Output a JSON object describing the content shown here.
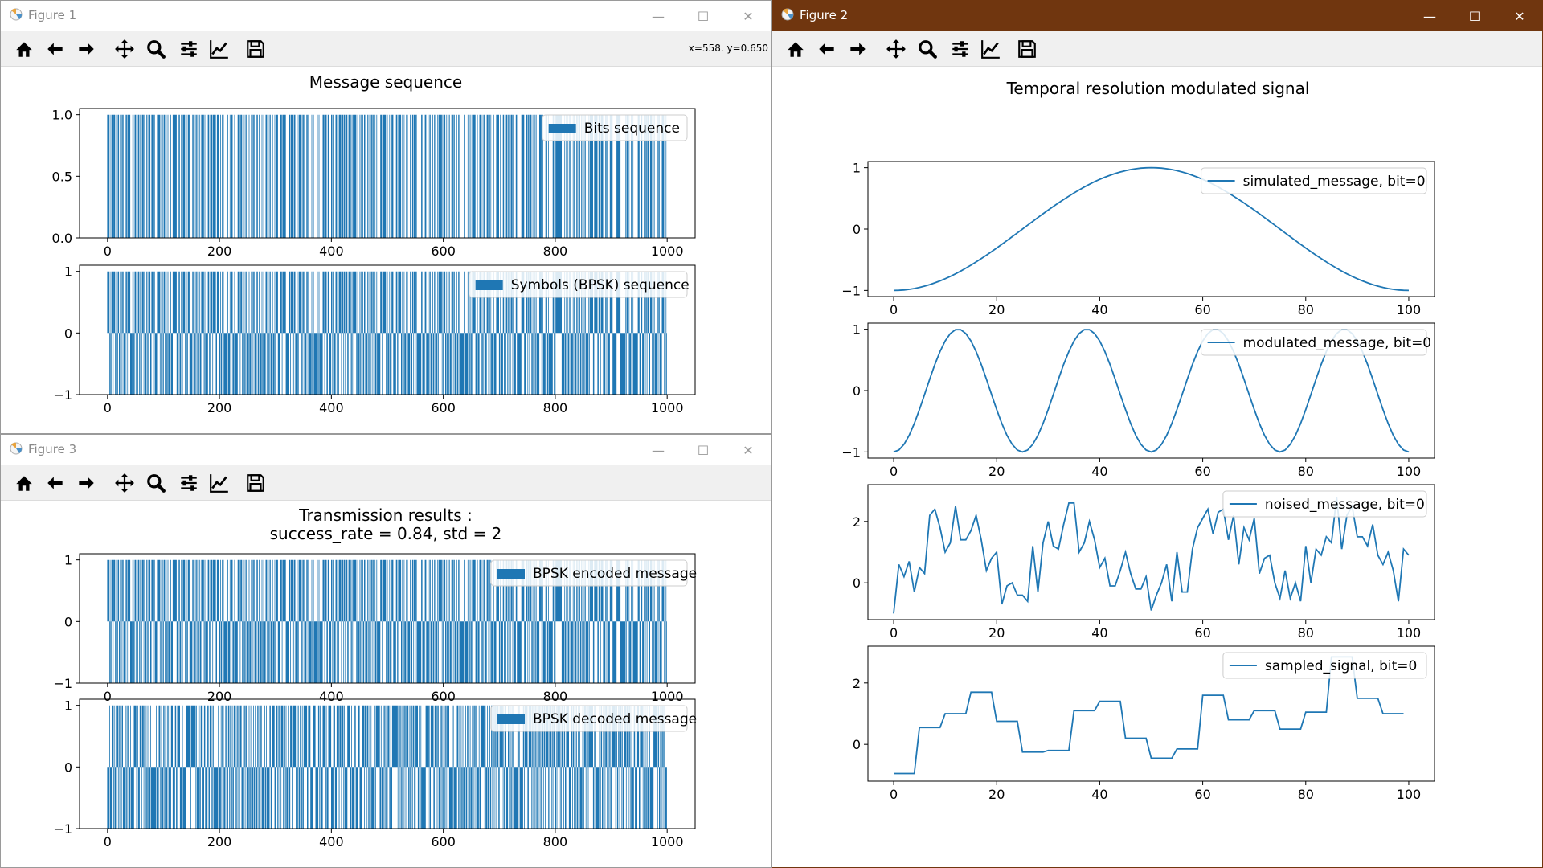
{
  "colors": {
    "series": "#1f77b4",
    "active_title": "#70360f",
    "inactive_title": "#ffffff",
    "toolbar": "#f0f0f0"
  },
  "toolbar_icons": [
    "home-icon",
    "back-arrow-icon",
    "forward-arrow-icon",
    "pan-icon",
    "zoom-icon",
    "configure-subplots-icon",
    "edit-axis-icon",
    "save-icon"
  ],
  "figure1": {
    "title": "Figure 1",
    "coords": "x=558. y=0.650",
    "suptitle": "Message sequence"
  },
  "figure2": {
    "title": "Figure 2",
    "suptitle": "Temporal resolution modulated signal"
  },
  "figure3": {
    "title": "Figure 3",
    "suptitle_line1": "Transmission results :",
    "suptitle_line2": "success_rate = 0.84, std = 2"
  },
  "chart_data": [
    {
      "type": "bar",
      "figure": "Figure 1",
      "legend": "Bits sequence",
      "xlim": [
        0,
        1000
      ],
      "ylim": [
        0,
        1
      ],
      "xticks": [
        "0",
        "200",
        "400",
        "600",
        "800",
        "1000"
      ],
      "yticks": [
        "0.0",
        "0.5",
        "1.0"
      ]
    },
    {
      "type": "bar",
      "figure": "Figure 1",
      "legend": "Symbols (BPSK) sequence",
      "xlim": [
        0,
        1000
      ],
      "ylim": [
        -1,
        1
      ],
      "xticks": [
        "0",
        "200",
        "400",
        "600",
        "800",
        "1000"
      ],
      "yticks": [
        "−1",
        "0",
        "1"
      ]
    },
    {
      "type": "line",
      "figure": "Figure 2",
      "legend": "simulated_message, bit=0",
      "xlim": [
        0,
        100
      ],
      "ylim": [
        -1,
        1
      ],
      "xticks": [
        "0",
        "20",
        "40",
        "60",
        "80",
        "100"
      ],
      "yticks": [
        "−1",
        "0",
        "1"
      ],
      "y": [
        -1.0,
        -0.998,
        -0.992,
        -0.982,
        -0.969,
        -0.951,
        -0.93,
        -0.905,
        -0.876,
        -0.844,
        -0.809,
        -0.771,
        -0.729,
        -0.685,
        -0.637,
        -0.588,
        -0.536,
        -0.482,
        -0.426,
        -0.368,
        -0.309,
        -0.249,
        -0.187,
        -0.125,
        -0.063,
        0.0,
        0.063,
        0.125,
        0.187,
        0.249,
        0.309,
        0.368,
        0.426,
        0.482,
        0.536,
        0.588,
        0.637,
        0.685,
        0.729,
        0.771,
        0.809,
        0.844,
        0.876,
        0.905,
        0.93,
        0.951,
        0.969,
        0.982,
        0.992,
        0.998,
        1.0,
        0.998,
        0.992,
        0.982,
        0.969,
        0.951,
        0.93,
        0.905,
        0.876,
        0.844,
        0.809,
        0.771,
        0.729,
        0.685,
        0.637,
        0.588,
        0.536,
        0.482,
        0.426,
        0.368,
        0.309,
        0.249,
        0.187,
        0.125,
        0.063,
        0.0,
        -0.063,
        -0.125,
        -0.187,
        -0.249,
        -0.309,
        -0.368,
        -0.426,
        -0.482,
        -0.536,
        -0.588,
        -0.637,
        -0.685,
        -0.729,
        -0.771,
        -0.809,
        -0.844,
        -0.876,
        -0.905,
        -0.93,
        -0.951,
        -0.969,
        -0.982,
        -0.992,
        -0.998,
        -1.0
      ]
    },
    {
      "type": "line",
      "figure": "Figure 2",
      "legend": "modulated_message, bit=0",
      "xlim": [
        0,
        100
      ],
      "ylim": [
        -1,
        1
      ],
      "xticks": [
        "0",
        "20",
        "40",
        "60",
        "80",
        "100"
      ],
      "yticks": [
        "−1",
        "0",
        "1"
      ],
      "y": [
        -1.0,
        -0.969,
        -0.876,
        -0.729,
        -0.536,
        -0.309,
        -0.063,
        0.187,
        0.426,
        0.637,
        0.809,
        0.93,
        0.992,
        0.992,
        0.93,
        0.809,
        0.637,
        0.426,
        0.187,
        -0.063,
        -0.309,
        -0.536,
        -0.729,
        -0.876,
        -0.969,
        -1.0,
        -0.969,
        -0.876,
        -0.729,
        -0.536,
        -0.309,
        -0.063,
        0.187,
        0.426,
        0.637,
        0.809,
        0.93,
        0.992,
        0.992,
        0.93,
        0.809,
        0.637,
        0.426,
        0.187,
        -0.063,
        -0.309,
        -0.536,
        -0.729,
        -0.876,
        -0.969,
        -1.0,
        -0.969,
        -0.876,
        -0.729,
        -0.536,
        -0.309,
        -0.063,
        0.187,
        0.426,
        0.637,
        0.809,
        0.93,
        0.992,
        0.992,
        0.93,
        0.809,
        0.637,
        0.426,
        0.187,
        -0.063,
        -0.309,
        -0.536,
        -0.729,
        -0.876,
        -0.969,
        -1.0,
        -0.969,
        -0.876,
        -0.729,
        -0.536,
        -0.309,
        -0.063,
        0.187,
        0.426,
        0.637,
        0.809,
        0.93,
        0.992,
        0.992,
        0.93,
        0.809,
        0.637,
        0.426,
        0.187,
        -0.063,
        -0.309,
        -0.536,
        -0.729,
        -0.876,
        -0.969,
        -1.0
      ]
    },
    {
      "type": "line",
      "figure": "Figure 2",
      "legend": "noised_message, bit=0",
      "xlim": [
        0,
        100
      ],
      "ylim": [
        -1,
        3
      ],
      "xticks": [
        "0",
        "20",
        "40",
        "60",
        "80",
        "100"
      ],
      "yticks": [
        "0",
        "2"
      ],
      "y": [
        -1.0,
        0.6,
        0.2,
        0.7,
        -0.3,
        0.5,
        0.3,
        2.2,
        2.4,
        1.8,
        1.0,
        1.3,
        2.5,
        1.4,
        1.4,
        1.7,
        2.2,
        1.4,
        0.4,
        0.8,
        1.0,
        -0.7,
        -0.1,
        0.0,
        -0.4,
        -0.4,
        -0.6,
        1.2,
        -0.3,
        1.3,
        2.0,
        1.2,
        1.1,
        1.9,
        2.6,
        2.6,
        1.0,
        1.3,
        2.0,
        1.4,
        0.5,
        0.8,
        -0.1,
        -0.1,
        0.4,
        1.0,
        0.3,
        -0.2,
        -0.2,
        0.2,
        -0.9,
        -0.4,
        0.0,
        0.6,
        -0.6,
        1.0,
        -0.3,
        -0.3,
        1.1,
        1.8,
        2.1,
        2.4,
        1.6,
        2.3,
        2.4,
        1.4,
        2.2,
        0.6,
        1.8,
        1.4,
        2.1,
        0.3,
        0.8,
        0.9,
        0.0,
        -0.5,
        0.4,
        -0.5,
        0.0,
        -0.6,
        1.2,
        0.0,
        1.1,
        0.9,
        1.5,
        1.3,
        2.8,
        1.1,
        2.2,
        2.5,
        1.5,
        1.5,
        1.2,
        1.9,
        0.9,
        0.6,
        1.0,
        0.4,
        -0.6,
        1.1,
        0.9
      ]
    },
    {
      "type": "line",
      "figure": "Figure 2",
      "legend": "sampled_signal, bit=0",
      "xlim": [
        0,
        100
      ],
      "ylim": [
        -1,
        3
      ],
      "xticks": [
        "0",
        "20",
        "40",
        "60",
        "80",
        "100"
      ],
      "yticks": [
        "0",
        "2"
      ],
      "x": [
        0,
        4,
        5,
        9,
        10,
        14,
        15,
        19,
        20,
        24,
        25,
        29,
        30,
        34,
        35,
        39,
        40,
        44,
        45,
        49,
        50,
        54,
        55,
        59,
        60,
        64,
        65,
        69,
        70,
        74,
        75,
        79,
        80,
        84,
        85,
        89,
        90,
        94,
        95,
        99
      ],
      "y": [
        -0.95,
        -0.95,
        0.55,
        0.55,
        1.0,
        1.0,
        1.7,
        1.7,
        0.75,
        0.75,
        -0.25,
        -0.25,
        -0.2,
        -0.2,
        1.1,
        1.1,
        1.4,
        1.4,
        0.2,
        0.2,
        -0.45,
        -0.45,
        -0.15,
        -0.15,
        1.6,
        1.6,
        0.8,
        0.8,
        1.1,
        1.1,
        0.5,
        0.5,
        1.05,
        1.05,
        2.85,
        2.85,
        1.5,
        1.5,
        1.0,
        1.0
      ]
    },
    {
      "type": "bar",
      "figure": "Figure 3",
      "legend": "BPSK encoded message",
      "xlim": [
        0,
        1000
      ],
      "ylim": [
        -1,
        1
      ],
      "xticks": [
        "0",
        "200",
        "400",
        "600",
        "800",
        "1000"
      ],
      "yticks": [
        "−1",
        "0",
        "1"
      ]
    },
    {
      "type": "bar",
      "figure": "Figure 3",
      "legend": "BPSK decoded message",
      "xlim": [
        0,
        1000
      ],
      "ylim": [
        -1,
        1
      ],
      "xticks": [
        "0",
        "200",
        "400",
        "600",
        "800",
        "1000"
      ],
      "yticks": [
        "−1",
        "0",
        "1"
      ]
    }
  ]
}
